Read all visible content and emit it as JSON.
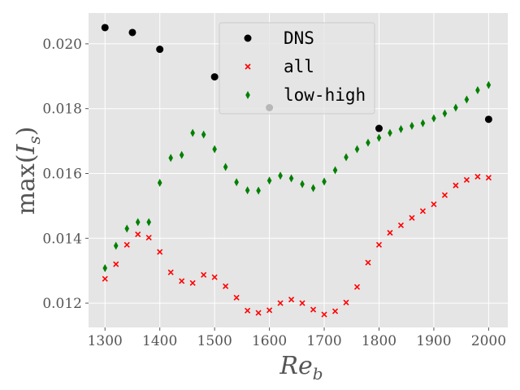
{
  "chart_data": {
    "type": "scatter",
    "xlabel": "Re_b",
    "xlabel_main": "Re",
    "xlabel_sub": "b",
    "ylabel": "max(I_s)",
    "ylabel_pre": "max(",
    "ylabel_var": "I",
    "ylabel_sub": "s",
    "ylabel_post": ")",
    "xlim": [
      1270,
      2035
    ],
    "ylim": [
      0.01125,
      0.02095
    ],
    "xticks": [
      1300,
      1400,
      1500,
      1600,
      1700,
      1800,
      1900,
      2000
    ],
    "xtick_labels": [
      "1300",
      "1400",
      "1500",
      "1600",
      "1700",
      "1800",
      "1900",
      "2000"
    ],
    "yticks": [
      0.012,
      0.014,
      0.016,
      0.018,
      0.02
    ],
    "ytick_labels": [
      "0.012",
      "0.014",
      "0.016",
      "0.018",
      "0.020"
    ],
    "grid": true,
    "legend_position": "top-center",
    "series": [
      {
        "name": "DNS",
        "marker": "circle",
        "color": "#000000",
        "x": [
          1300,
          1350,
          1400,
          1500,
          1600,
          1800,
          2000
        ],
        "y": [
          0.0205,
          0.02035,
          0.01983,
          0.01898,
          0.01803,
          0.01739,
          0.01767
        ]
      },
      {
        "name": "all",
        "marker": "x",
        "color": "#ff0000",
        "x": [
          1300,
          1320,
          1340,
          1360,
          1380,
          1400,
          1420,
          1440,
          1460,
          1480,
          1500,
          1520,
          1540,
          1560,
          1580,
          1600,
          1620,
          1640,
          1660,
          1680,
          1700,
          1720,
          1740,
          1760,
          1780,
          1800,
          1820,
          1840,
          1860,
          1880,
          1900,
          1920,
          1940,
          1960,
          1980,
          2000
        ],
        "y": [
          0.01275,
          0.0132,
          0.0138,
          0.01412,
          0.01402,
          0.01358,
          0.01295,
          0.01268,
          0.01262,
          0.01287,
          0.0128,
          0.01252,
          0.01217,
          0.01177,
          0.0117,
          0.01178,
          0.012,
          0.01211,
          0.012,
          0.0118,
          0.01165,
          0.01175,
          0.01202,
          0.0125,
          0.01325,
          0.0138,
          0.01417,
          0.0144,
          0.01463,
          0.01484,
          0.01505,
          0.01533,
          0.01563,
          0.0158,
          0.0159,
          0.01587
        ]
      },
      {
        "name": "low-high",
        "marker": "thin-diamond",
        "color": "#008000",
        "x": [
          1300,
          1320,
          1340,
          1360,
          1380,
          1400,
          1420,
          1440,
          1460,
          1480,
          1500,
          1520,
          1540,
          1560,
          1580,
          1600,
          1620,
          1640,
          1660,
          1680,
          1700,
          1720,
          1740,
          1760,
          1780,
          1800,
          1820,
          1840,
          1860,
          1880,
          1900,
          1920,
          1940,
          1960,
          1980,
          2000
        ],
        "y": [
          0.01308,
          0.01377,
          0.0143,
          0.0145,
          0.0145,
          0.01571,
          0.01648,
          0.01657,
          0.01725,
          0.0172,
          0.01675,
          0.0162,
          0.01573,
          0.01548,
          0.01547,
          0.01578,
          0.01593,
          0.01585,
          0.01567,
          0.01555,
          0.01575,
          0.0161,
          0.0165,
          0.01675,
          0.01695,
          0.0171,
          0.01725,
          0.01737,
          0.01747,
          0.01755,
          0.0177,
          0.01785,
          0.01803,
          0.01828,
          0.01857,
          0.01873
        ]
      }
    ]
  }
}
